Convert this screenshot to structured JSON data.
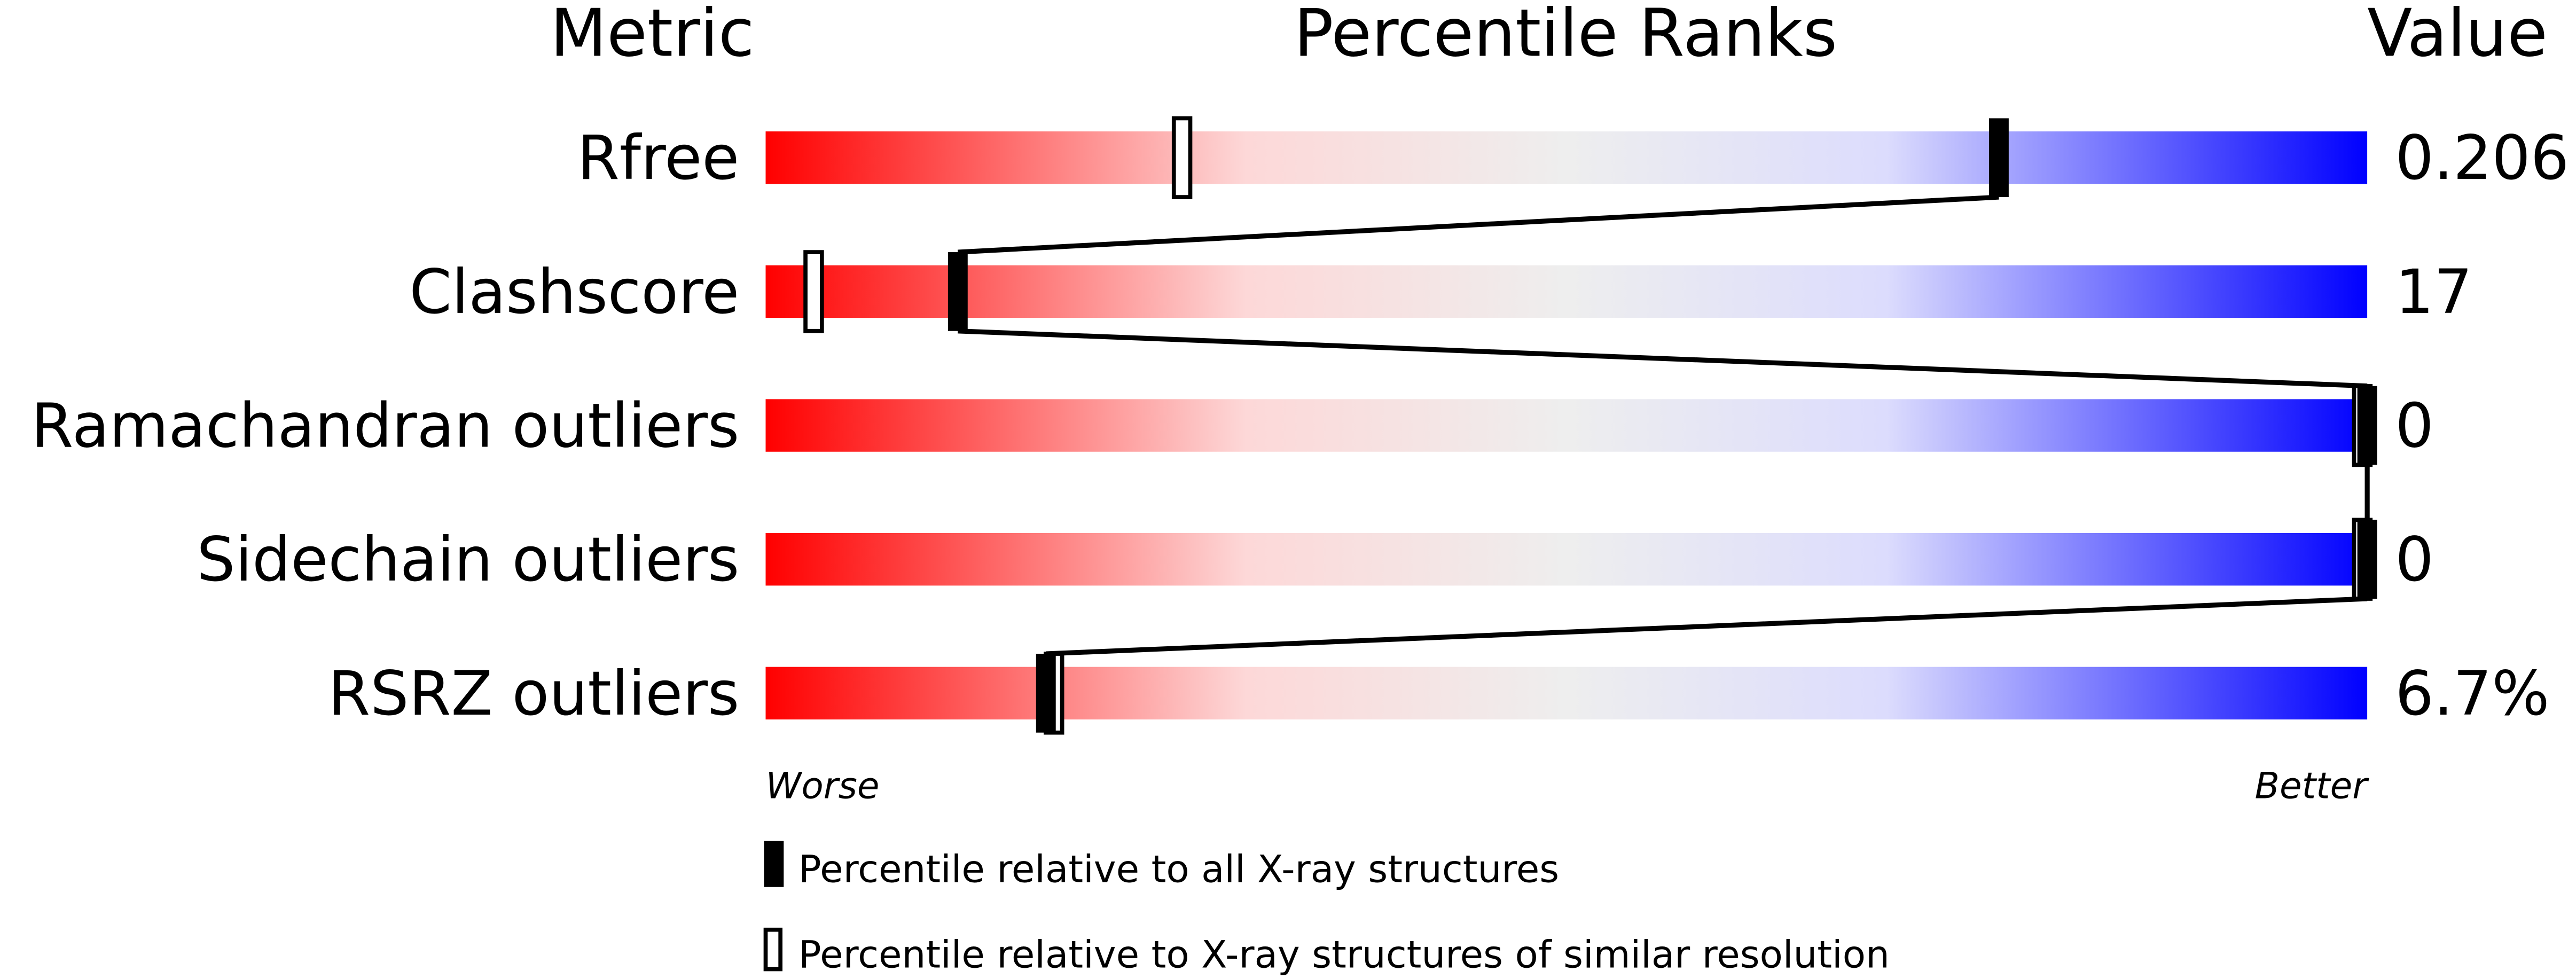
{
  "chart_data": {
    "type": "percentile-bars",
    "headers": {
      "metric": "Metric",
      "ranks": "Percentile Ranks",
      "value": "Value"
    },
    "xlim": [
      0,
      100
    ],
    "gradient_colors": [
      "#ff0000",
      "#eeeeee",
      "#0000ff"
    ],
    "rows": [
      {
        "metric": "Rfree",
        "value": "0.206",
        "percentile_all": 77,
        "percentile_similar": 26
      },
      {
        "metric": "Clashscore",
        "value": "17",
        "percentile_all": 12,
        "percentile_similar": 3
      },
      {
        "metric": "Ramachandran outliers",
        "value": "0",
        "percentile_all": 100,
        "percentile_similar": 100
      },
      {
        "metric": "Sidechain outliers",
        "value": "0",
        "percentile_all": 100,
        "percentile_similar": 100
      },
      {
        "metric": "RSRZ outliers",
        "value": "6.7%",
        "percentile_all": 17.5,
        "percentile_similar": 18
      }
    ],
    "axis_left_label": "Worse",
    "axis_right_label": "Better",
    "legend": {
      "all": "Percentile relative to all X-ray structures",
      "similar": "Percentile relative to X-ray structures of similar resolution"
    }
  }
}
